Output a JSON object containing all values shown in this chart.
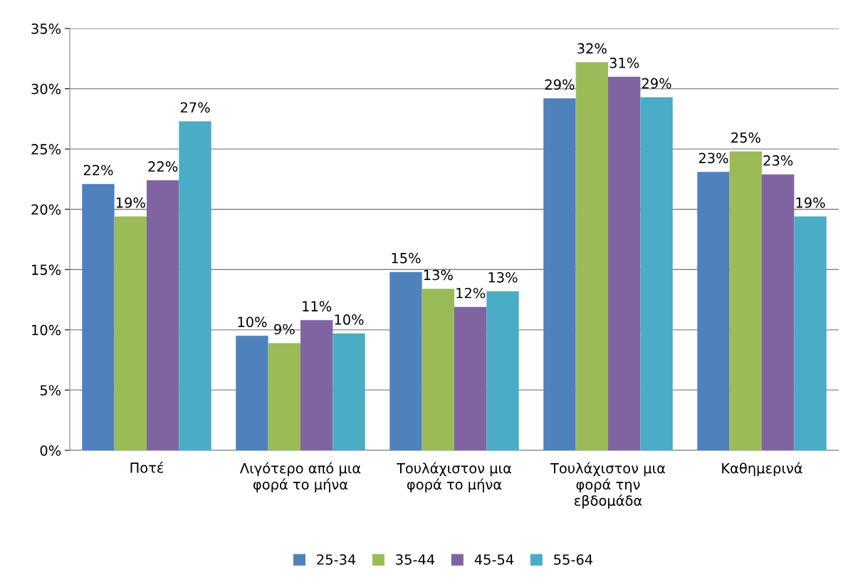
{
  "chart_data": {
    "type": "bar",
    "categories": [
      "Ποτέ",
      "Λιγότερο από μια\nφορά το μήνα",
      "Τουλάχιστον μια\nφορά το μήνα",
      "Τουλάχιστον μια\nφορά την\nεβδομάδα",
      "Καθημερινά"
    ],
    "series": [
      {
        "name": "25-34",
        "color": "#4f81bd",
        "values": [
          22.1,
          9.5,
          14.8,
          29.2,
          23.1
        ],
        "value_labels": [
          "22%",
          "10%",
          "15%",
          "29%",
          "23%"
        ]
      },
      {
        "name": "35-44",
        "color": "#9bbb59",
        "values": [
          19.4,
          8.9,
          13.4,
          32.2,
          24.8
        ],
        "value_labels": [
          "19%",
          "9%",
          "13%",
          "32%",
          "25%"
        ]
      },
      {
        "name": "45-54",
        "color": "#8064a2",
        "values": [
          22.4,
          10.8,
          11.9,
          31.0,
          22.9
        ],
        "value_labels": [
          "22%",
          "11%",
          "12%",
          "31%",
          "23%"
        ]
      },
      {
        "name": "55-64",
        "color": "#4bacc6",
        "values": [
          27.3,
          9.7,
          13.2,
          29.3,
          19.4
        ],
        "value_labels": [
          "27%",
          "10%",
          "13%",
          "29%",
          "19%"
        ]
      }
    ],
    "ylim": [
      0,
      35
    ],
    "yticks": [
      {
        "value": 0,
        "label": "0%"
      },
      {
        "value": 5,
        "label": "5%"
      },
      {
        "value": 10,
        "label": "10%"
      },
      {
        "value": 15,
        "label": "15%"
      },
      {
        "value": 20,
        "label": "20%"
      },
      {
        "value": 25,
        "label": "25%"
      },
      {
        "value": 30,
        "label": "30%"
      },
      {
        "value": 35,
        "label": "35%"
      }
    ],
    "grid": "y",
    "legend": "bottom"
  }
}
